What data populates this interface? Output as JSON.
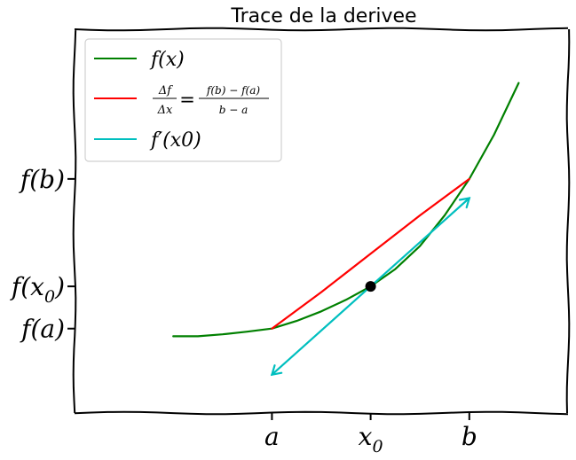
{
  "chart_data": {
    "type": "line",
    "title": "Trace de la derivee",
    "xlabel": "",
    "ylabel": "",
    "style": "xkcd",
    "xlim": [
      0,
      10
    ],
    "ylim": [
      0,
      10
    ],
    "grid": false,
    "legend_position": "top-left",
    "x_ticks": [
      {
        "value": 4,
        "label": "a"
      },
      {
        "value": 6,
        "label": "x0"
      },
      {
        "value": 8,
        "label": "b"
      }
    ],
    "y_ticks": [
      {
        "value": 2.2,
        "label": "f(a)"
      },
      {
        "value": 3.3,
        "label": "f(x0)"
      },
      {
        "value": 6.1,
        "label": "f(b)"
      }
    ],
    "series": [
      {
        "name": "f(x)",
        "color": "#008000",
        "x": [
          2,
          2.5,
          3,
          3.5,
          4,
          4.5,
          5,
          5.5,
          6,
          6.5,
          7,
          7.5,
          8,
          8.5,
          9
        ],
        "y": [
          2.0,
          2.0,
          2.05,
          2.12,
          2.2,
          2.4,
          2.65,
          2.95,
          3.3,
          3.75,
          4.35,
          5.15,
          6.1,
          7.25,
          8.6
        ]
      },
      {
        "name": "Δf/Δx = (f(b) − f(a))/(b − a)",
        "color": "#ff0000",
        "x": [
          4,
          5,
          6,
          7,
          8
        ],
        "y": [
          2.2,
          3.15,
          4.15,
          5.15,
          6.1
        ]
      },
      {
        "name": "f′(x0)",
        "color": "#00bfbf",
        "x": [
          4,
          6,
          8
        ],
        "y": [
          1.0,
          3.3,
          5.6
        ]
      }
    ],
    "point": {
      "x": 6,
      "y": 3.3,
      "color": "#000000"
    }
  }
}
